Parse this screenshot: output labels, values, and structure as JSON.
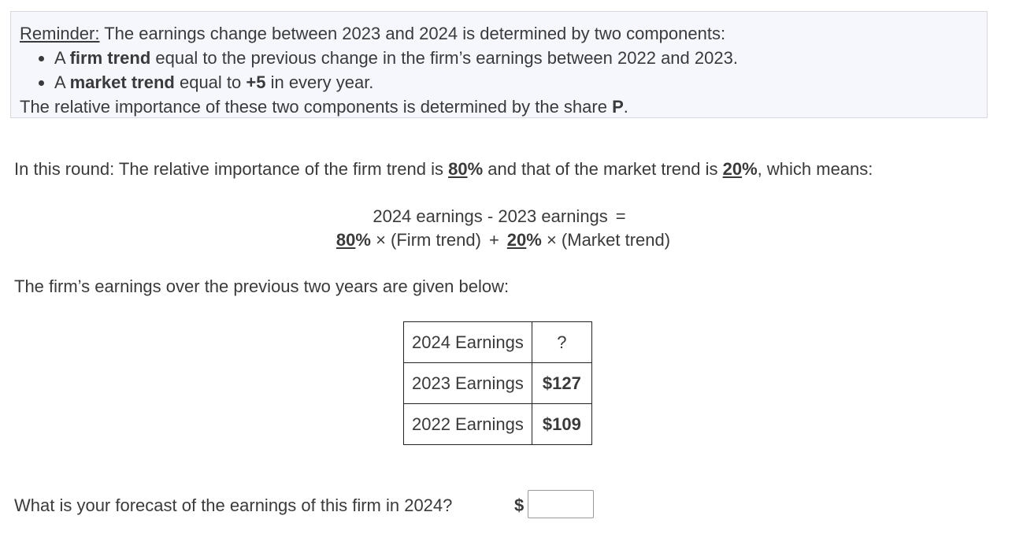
{
  "reminder": {
    "label": "Reminder:",
    "intro": " The earnings change between 2023 and 2024 is determined by two components:",
    "bullet1": {
      "pre": "A ",
      "bold": "firm trend",
      "post": " equal to the previous change in the firm’s earnings between 2022 and 2023."
    },
    "bullet2": {
      "pre": "A ",
      "bold": "market trend",
      "mid": " equal to ",
      "bold2": "+5",
      "post": " in every year."
    },
    "closing": {
      "pre": "The relative importance of these two components is determined by the share ",
      "bold": "P",
      "post": "."
    }
  },
  "round": {
    "pre": "In this round: The relative importance of the firm trend is ",
    "firm_pct_num": "80",
    "pct_sign": "%",
    "mid": " and that of the market trend is ",
    "market_pct_num": "20",
    "post": ", which means:"
  },
  "equation": {
    "line1_left": "2024 earnings - 2023 earnings",
    "equals": "=",
    "firm_num": "80",
    "pct": "%",
    "firm_rest": " × (Firm trend)",
    "plus": "+",
    "market_num": "20",
    "market_rest": " × (Market trend)"
  },
  "previous_text": "The firm’s earnings over the previous two years are given below:",
  "earnings_table": [
    {
      "label": "2024 Earnings",
      "value": "?"
    },
    {
      "label": "2023 Earnings",
      "value": "$127"
    },
    {
      "label": "2022 Earnings",
      "value": "$109"
    }
  ],
  "question": {
    "text": "What is your forecast of the earnings of this firm in 2024?",
    "currency": "$",
    "input_value": ""
  }
}
